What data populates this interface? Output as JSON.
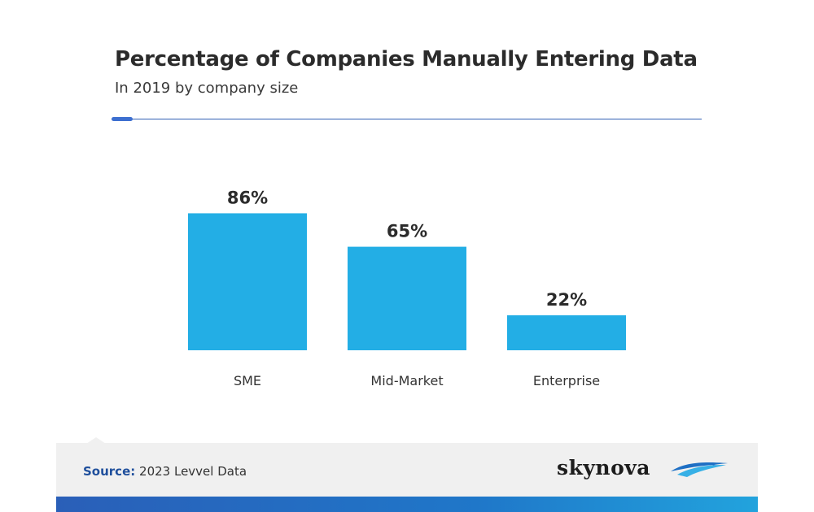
{
  "chart_data": {
    "type": "bar",
    "title": "Percentage of Companies Manually Entering Data",
    "subtitle": "In 2019 by company size",
    "categories": [
      "SME",
      "Mid-Market",
      "Enterprise"
    ],
    "values": [
      86,
      65,
      22
    ],
    "value_labels": [
      "86%",
      "65%",
      "22%"
    ],
    "ylim": [
      0,
      100
    ],
    "bar_color": "#23aee5",
    "grid": false,
    "legend": "none"
  },
  "footer": {
    "source_key": "Source:",
    "source_text": "2023 Levvel Data",
    "logo_text": "skynova",
    "logo_icon": "wave-swoosh-icon"
  },
  "colors": {
    "accent": "#2f5fb3",
    "bar": "#23aee5",
    "footer_bg": "#f0f0f0"
  }
}
